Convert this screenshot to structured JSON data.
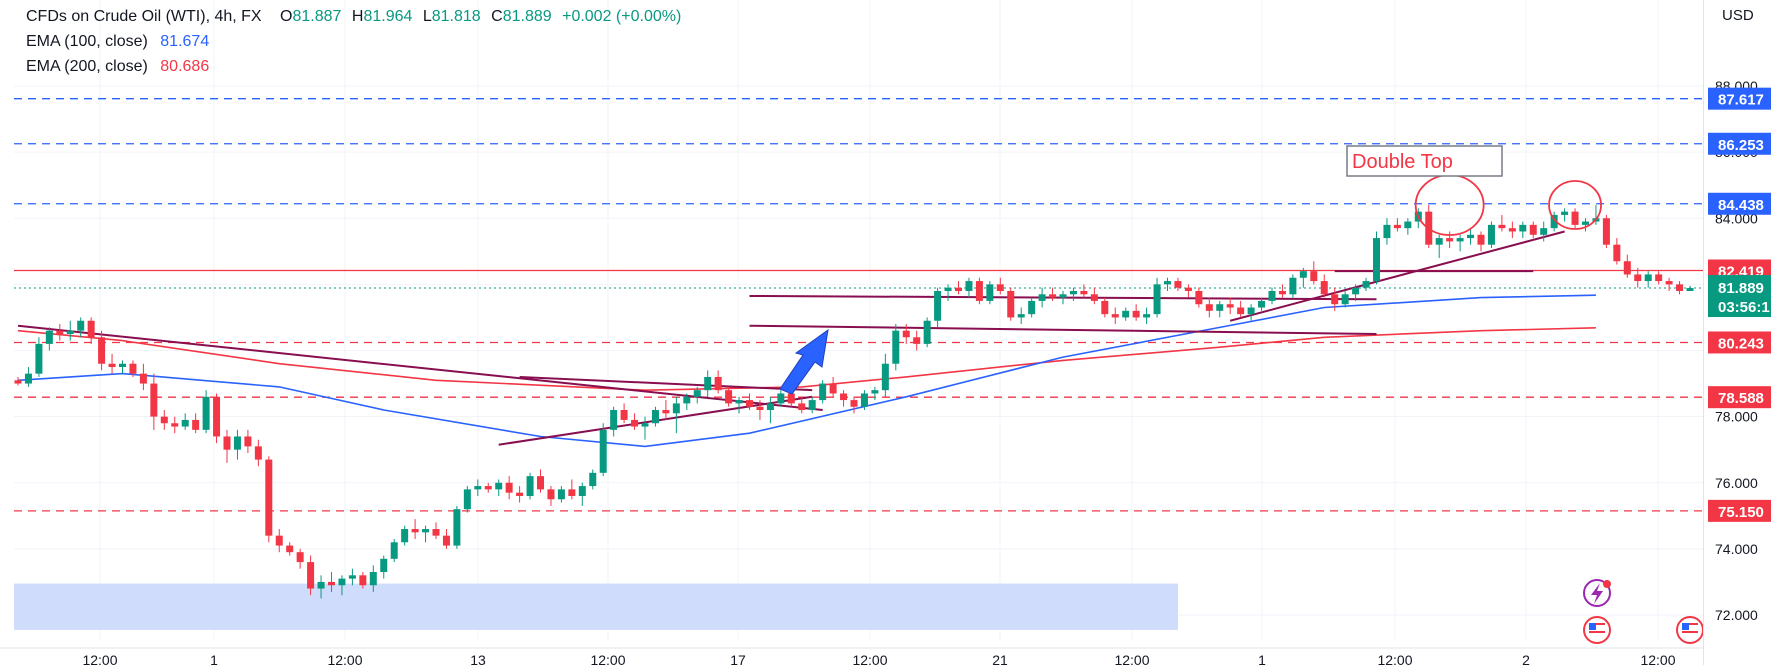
{
  "header": {
    "symbol": "CFDs on Crude Oil (WTI), 4h, FX",
    "open_label": "O",
    "open": "81.887",
    "high_label": "H",
    "high": "81.964",
    "low_label": "L",
    "low": "81.818",
    "close_label": "C",
    "close": "81.889",
    "change": "+0.002 (+0.00%)",
    "ema100_label": "EMA (100, close)",
    "ema100_value": "81.674",
    "ema100_color": "#2962ff",
    "ema200_label": "EMA (200, close)",
    "ema200_value": "80.686",
    "ema200_color": "#f23645"
  },
  "currency": "USD",
  "chart_data": {
    "type": "candlestick",
    "title": "",
    "ylim": [
      71.15,
      88.6
    ],
    "y_ticks": [
      "88.000",
      "86.000",
      "84.000",
      "78.000",
      "76.000",
      "74.000",
      "72.000"
    ],
    "grid": true,
    "up_color": "#089981",
    "down_color": "#f23645",
    "candles": [
      [
        79.1,
        79.2,
        78.95,
        79.0
      ],
      [
        79.0,
        79.5,
        78.9,
        79.3
      ],
      [
        79.3,
        80.4,
        79.2,
        80.2
      ],
      [
        80.2,
        80.7,
        80.0,
        80.6
      ],
      [
        80.6,
        80.8,
        80.3,
        80.5
      ],
      [
        80.5,
        80.9,
        80.3,
        80.6
      ],
      [
        80.6,
        81.0,
        80.4,
        80.9
      ],
      [
        80.9,
        81.0,
        80.2,
        80.4
      ],
      [
        80.4,
        80.6,
        79.4,
        79.6
      ],
      [
        79.6,
        79.9,
        79.3,
        79.5
      ],
      [
        79.5,
        79.7,
        79.3,
        79.6
      ],
      [
        79.6,
        79.7,
        79.2,
        79.3
      ],
      [
        79.3,
        79.6,
        78.8,
        79.0
      ],
      [
        79.0,
        79.3,
        77.6,
        78.0
      ],
      [
        78.0,
        78.2,
        77.6,
        77.8
      ],
      [
        77.8,
        78.0,
        77.5,
        77.7
      ],
      [
        77.7,
        78.1,
        77.6,
        77.9
      ],
      [
        77.9,
        78.1,
        77.5,
        77.6
      ],
      [
        77.6,
        78.8,
        77.5,
        78.6
      ],
      [
        78.6,
        78.7,
        77.2,
        77.4
      ],
      [
        77.4,
        77.6,
        76.6,
        77.0
      ],
      [
        77.0,
        77.6,
        76.7,
        77.4
      ],
      [
        77.4,
        77.6,
        76.9,
        77.1
      ],
      [
        77.1,
        77.3,
        76.5,
        76.7
      ],
      [
        76.7,
        76.8,
        74.2,
        74.4
      ],
      [
        74.4,
        74.6,
        73.9,
        74.1
      ],
      [
        74.1,
        74.2,
        73.8,
        73.9
      ],
      [
        73.9,
        74.0,
        73.4,
        73.6
      ],
      [
        73.6,
        73.8,
        72.6,
        72.8
      ],
      [
        72.8,
        73.2,
        72.5,
        73.0
      ],
      [
        73.0,
        73.3,
        72.7,
        72.9
      ],
      [
        72.9,
        73.2,
        72.6,
        73.1
      ],
      [
        73.1,
        73.4,
        72.9,
        73.2
      ],
      [
        73.2,
        73.3,
        72.8,
        72.9
      ],
      [
        72.9,
        73.5,
        72.7,
        73.3
      ],
      [
        73.3,
        73.8,
        73.1,
        73.7
      ],
      [
        73.7,
        74.3,
        73.6,
        74.2
      ],
      [
        74.2,
        74.7,
        74.1,
        74.6
      ],
      [
        74.6,
        74.9,
        74.3,
        74.5
      ],
      [
        74.5,
        74.7,
        74.2,
        74.6
      ],
      [
        74.6,
        74.8,
        74.3,
        74.4
      ],
      [
        74.4,
        74.6,
        74.0,
        74.1
      ],
      [
        74.1,
        75.3,
        74.0,
        75.2
      ],
      [
        75.2,
        75.9,
        75.1,
        75.8
      ],
      [
        75.8,
        76.1,
        75.6,
        75.9
      ],
      [
        75.9,
        76.0,
        75.7,
        75.8
      ],
      [
        75.8,
        76.1,
        75.6,
        76.0
      ],
      [
        76.0,
        76.2,
        75.5,
        75.7
      ],
      [
        75.7,
        75.9,
        75.4,
        75.6
      ],
      [
        75.6,
        76.3,
        75.5,
        76.2
      ],
      [
        76.2,
        76.4,
        75.7,
        75.8
      ],
      [
        75.8,
        75.9,
        75.3,
        75.5
      ],
      [
        75.5,
        75.9,
        75.4,
        75.8
      ],
      [
        75.8,
        76.1,
        75.5,
        75.6
      ],
      [
        75.6,
        76.0,
        75.3,
        75.9
      ],
      [
        75.9,
        76.4,
        75.8,
        76.3
      ],
      [
        76.3,
        77.8,
        76.2,
        77.6
      ],
      [
        77.6,
        78.3,
        77.4,
        78.2
      ],
      [
        78.2,
        78.4,
        77.8,
        77.9
      ],
      [
        77.9,
        78.1,
        77.6,
        77.7
      ],
      [
        77.7,
        78.0,
        77.3,
        77.8
      ],
      [
        77.8,
        78.3,
        77.7,
        78.2
      ],
      [
        78.2,
        78.5,
        77.9,
        78.1
      ],
      [
        78.1,
        78.6,
        77.5,
        78.4
      ],
      [
        78.4,
        78.7,
        78.2,
        78.6
      ],
      [
        78.6,
        78.9,
        78.4,
        78.8
      ],
      [
        78.8,
        79.4,
        78.6,
        79.2
      ],
      [
        79.2,
        79.4,
        78.7,
        78.8
      ],
      [
        78.8,
        78.9,
        78.3,
        78.4
      ],
      [
        78.4,
        78.6,
        78.1,
        78.5
      ],
      [
        78.5,
        78.7,
        78.2,
        78.3
      ],
      [
        78.3,
        78.5,
        77.9,
        78.2
      ],
      [
        78.2,
        78.6,
        77.8,
        78.4
      ],
      [
        78.4,
        78.8,
        78.3,
        78.7
      ],
      [
        78.7,
        78.9,
        78.3,
        78.4
      ],
      [
        78.4,
        78.6,
        78.1,
        78.2
      ],
      [
        78.2,
        78.6,
        78.1,
        78.5
      ],
      [
        78.5,
        79.1,
        78.4,
        79.0
      ],
      [
        79.0,
        79.2,
        78.6,
        78.7
      ],
      [
        78.7,
        78.8,
        78.3,
        78.5
      ],
      [
        78.5,
        78.6,
        78.1,
        78.3
      ],
      [
        78.3,
        78.8,
        78.2,
        78.7
      ],
      [
        78.7,
        78.9,
        78.5,
        78.8
      ],
      [
        78.8,
        79.9,
        78.6,
        79.6
      ],
      [
        79.6,
        80.8,
        79.4,
        80.6
      ],
      [
        80.6,
        80.8,
        80.2,
        80.4
      ],
      [
        80.4,
        80.6,
        80.0,
        80.2
      ],
      [
        80.2,
        81.0,
        80.1,
        80.9
      ],
      [
        80.9,
        81.9,
        80.7,
        81.8
      ],
      [
        81.8,
        82.0,
        81.5,
        81.9
      ],
      [
        81.9,
        82.1,
        81.7,
        81.8
      ],
      [
        81.8,
        82.2,
        81.6,
        82.1
      ],
      [
        82.1,
        82.2,
        81.4,
        81.5
      ],
      [
        81.5,
        82.1,
        81.4,
        82.0
      ],
      [
        82.0,
        82.2,
        81.7,
        81.8
      ],
      [
        81.8,
        81.9,
        80.9,
        81.0
      ],
      [
        81.0,
        81.3,
        80.8,
        81.1
      ],
      [
        81.1,
        81.6,
        81.0,
        81.5
      ],
      [
        81.5,
        81.9,
        81.3,
        81.7
      ],
      [
        81.7,
        81.9,
        81.5,
        81.6
      ],
      [
        81.6,
        81.8,
        81.4,
        81.7
      ],
      [
        81.7,
        81.9,
        81.5,
        81.8
      ],
      [
        81.8,
        82.0,
        81.6,
        81.7
      ],
      [
        81.7,
        81.9,
        81.4,
        81.5
      ],
      [
        81.5,
        81.6,
        81.0,
        81.1
      ],
      [
        81.1,
        81.3,
        80.8,
        81.0
      ],
      [
        81.0,
        81.3,
        80.9,
        81.2
      ],
      [
        81.2,
        81.4,
        80.9,
        81.0
      ],
      [
        81.0,
        81.3,
        80.8,
        81.1
      ],
      [
        81.1,
        82.2,
        81.0,
        82.0
      ],
      [
        82.0,
        82.2,
        81.8,
        82.1
      ],
      [
        82.1,
        82.2,
        81.8,
        81.9
      ],
      [
        81.9,
        82.0,
        81.6,
        81.8
      ],
      [
        81.8,
        81.9,
        81.3,
        81.4
      ],
      [
        81.4,
        81.6,
        81.0,
        81.2
      ],
      [
        81.2,
        81.5,
        81.0,
        81.4
      ],
      [
        81.4,
        81.6,
        81.1,
        81.3
      ],
      [
        81.3,
        81.5,
        81.0,
        81.1
      ],
      [
        81.1,
        81.4,
        80.9,
        81.3
      ],
      [
        81.3,
        81.6,
        81.2,
        81.5
      ],
      [
        81.5,
        81.9,
        81.4,
        81.8
      ],
      [
        81.8,
        82.0,
        81.6,
        81.7
      ],
      [
        81.7,
        82.3,
        81.6,
        82.2
      ],
      [
        82.2,
        82.5,
        81.9,
        82.4
      ],
      [
        82.4,
        82.7,
        82.0,
        82.1
      ],
      [
        82.1,
        82.3,
        81.6,
        81.7
      ],
      [
        81.7,
        81.9,
        81.2,
        81.4
      ],
      [
        81.4,
        81.8,
        81.3,
        81.7
      ],
      [
        81.7,
        82.0,
        81.5,
        81.9
      ],
      [
        81.9,
        82.2,
        81.8,
        82.1
      ],
      [
        82.1,
        83.6,
        82.0,
        83.4
      ],
      [
        83.4,
        84.0,
        83.2,
        83.8
      ],
      [
        83.8,
        84.0,
        83.6,
        83.7
      ],
      [
        83.7,
        84.0,
        83.5,
        83.9
      ],
      [
        83.9,
        84.3,
        83.7,
        84.2
      ],
      [
        84.2,
        84.4,
        83.1,
        83.2
      ],
      [
        83.2,
        83.5,
        82.8,
        83.4
      ],
      [
        83.4,
        83.6,
        83.1,
        83.3
      ],
      [
        83.3,
        83.5,
        83.0,
        83.4
      ],
      [
        83.4,
        83.7,
        83.2,
        83.5
      ],
      [
        83.5,
        83.6,
        83.0,
        83.2
      ],
      [
        83.2,
        83.9,
        83.1,
        83.8
      ],
      [
        83.8,
        84.1,
        83.6,
        83.7
      ],
      [
        83.7,
        83.9,
        83.4,
        83.6
      ],
      [
        83.6,
        83.9,
        83.4,
        83.8
      ],
      [
        83.8,
        83.9,
        83.4,
        83.5
      ],
      [
        83.5,
        83.9,
        83.3,
        83.7
      ],
      [
        83.7,
        84.2,
        83.6,
        84.1
      ],
      [
        84.1,
        84.3,
        83.9,
        84.2
      ],
      [
        84.2,
        84.3,
        83.7,
        83.8
      ],
      [
        83.8,
        84.0,
        83.6,
        83.9
      ],
      [
        83.9,
        84.4,
        83.8,
        84.0
      ],
      [
        84.0,
        84.1,
        83.1,
        83.2
      ],
      [
        83.2,
        83.4,
        82.6,
        82.7
      ],
      [
        82.7,
        82.9,
        82.2,
        82.3
      ],
      [
        82.3,
        82.5,
        81.9,
        82.1
      ],
      [
        82.1,
        82.4,
        81.9,
        82.3
      ],
      [
        82.3,
        82.4,
        82.0,
        82.1
      ],
      [
        82.1,
        82.2,
        81.8,
        82.0
      ],
      [
        82.0,
        82.1,
        81.7,
        81.8
      ],
      [
        81.8,
        81.96,
        81.8,
        81.889
      ]
    ],
    "ema100_points": [
      [
        0,
        79.1
      ],
      [
        10,
        79.3
      ],
      [
        25,
        78.9
      ],
      [
        35,
        78.2
      ],
      [
        50,
        77.4
      ],
      [
        60,
        77.1
      ],
      [
        70,
        77.5
      ],
      [
        85,
        78.6
      ],
      [
        100,
        79.8
      ],
      [
        115,
        80.7
      ],
      [
        125,
        81.3
      ],
      [
        140,
        81.6
      ],
      [
        151,
        81.674
      ]
    ],
    "ema200_points": [
      [
        0,
        80.6
      ],
      [
        10,
        80.3
      ],
      [
        25,
        79.6
      ],
      [
        40,
        79.1
      ],
      [
        60,
        78.8
      ],
      [
        75,
        78.9
      ],
      [
        85,
        79.2
      ],
      [
        100,
        79.7
      ],
      [
        115,
        80.1
      ],
      [
        125,
        80.4
      ],
      [
        140,
        80.6
      ],
      [
        151,
        80.686
      ]
    ],
    "horizontal_levels": [
      {
        "value": "87.617",
        "price": 87.617,
        "color": "#2962ff",
        "style": "dashed"
      },
      {
        "value": "86.253",
        "price": 86.253,
        "color": "#2962ff",
        "style": "dashed"
      },
      {
        "value": "84.438",
        "price": 84.438,
        "color": "#2962ff",
        "style": "dashed"
      },
      {
        "value": "82.419",
        "price": 82.419,
        "color": "#f23645",
        "style": "solid"
      },
      {
        "value": "80.243",
        "price": 80.243,
        "color": "#f23645",
        "style": "dashed"
      },
      {
        "value": "78.588",
        "price": 78.588,
        "color": "#f23645",
        "style": "dashed"
      },
      {
        "value": "75.150",
        "price": 75.15,
        "color": "#f23645",
        "style": "dashed"
      }
    ],
    "current_price": {
      "value": "81.889",
      "countdown": "03:56:1",
      "price": 81.889,
      "color": "#089981"
    },
    "annotations": [
      {
        "text": "Double Top"
      }
    ],
    "x_tick_labels": [
      "12:00",
      "1",
      "12:00",
      "13",
      "12:00",
      "17",
      "12:00",
      "21",
      "12:00",
      "1",
      "12:00",
      "2",
      "12:00"
    ]
  }
}
